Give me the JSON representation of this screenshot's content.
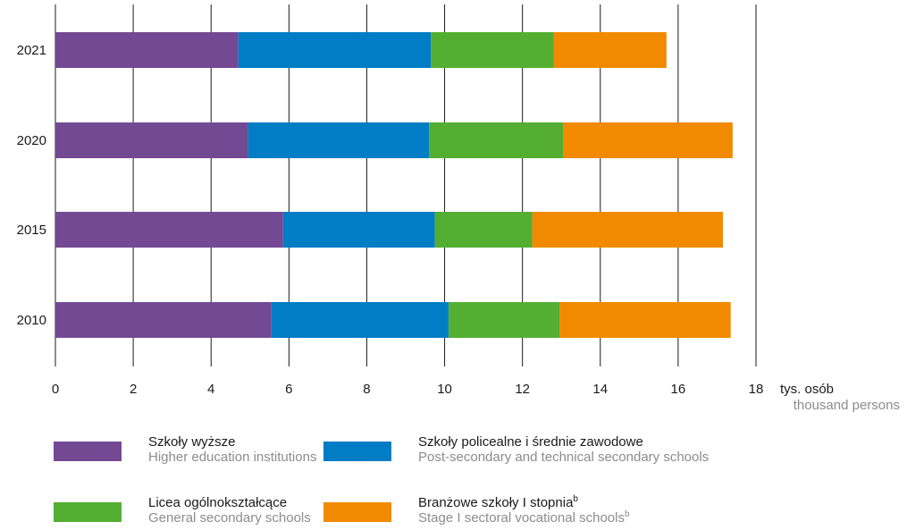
{
  "chart_data": {
    "type": "bar",
    "orientation": "horizontal",
    "stacked": true,
    "categories": [
      "2021",
      "2020",
      "2015",
      "2010"
    ],
    "series": [
      {
        "name": "Szkoły wyższe",
        "name_en": "Higher education institutions",
        "color": "#734994",
        "values": [
          4.7,
          4.95,
          5.85,
          5.55
        ]
      },
      {
        "name": "Szkoły policealne i średnie zawodowe",
        "name_en": "Post-secondary and technical secondary schools",
        "color": "#007dc5",
        "values": [
          4.95,
          4.65,
          3.9,
          4.55
        ]
      },
      {
        "name": "Licea ogólnokształcące",
        "name_en": "General secondary schools",
        "color": "#53ae32",
        "values": [
          3.15,
          3.45,
          2.5,
          2.85
        ]
      },
      {
        "name": "Branżowe szkoły I stopnia",
        "name_en": "Stage I sectoral vocational schools",
        "name_sup": "b",
        "color": "#f18a00",
        "values": [
          2.9,
          4.35,
          4.9,
          4.4
        ]
      }
    ],
    "xlim": [
      0,
      18
    ],
    "x_ticks": [
      "0",
      "2",
      "4",
      "6",
      "8",
      "10",
      "12",
      "14",
      "16",
      "18"
    ],
    "unit_label": "tys. osób",
    "unit_label_en": "thousand persons",
    "grid": true,
    "legend_position": "bottom"
  }
}
